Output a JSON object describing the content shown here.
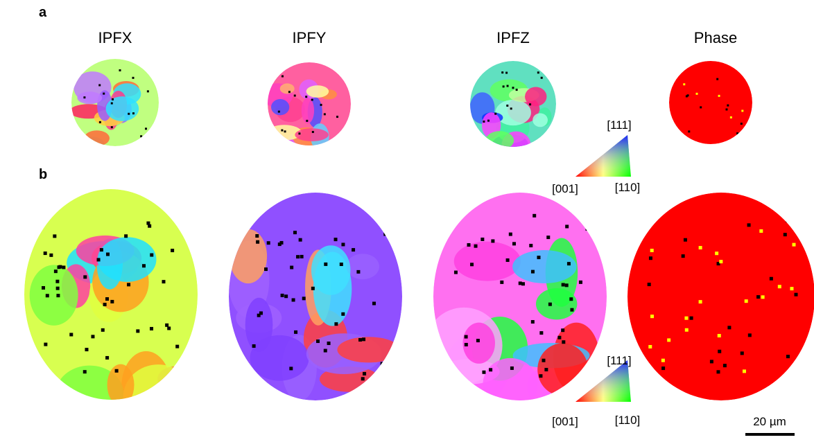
{
  "panels": {
    "a": "a",
    "b": "b"
  },
  "columns": [
    "IPFX",
    "IPFY",
    "IPFZ",
    "Phase"
  ],
  "legend_top": {
    "top": "[111]",
    "left": "[001]",
    "right": "[110]"
  },
  "legend_bottom": {
    "top": "[111]",
    "left": "[001]",
    "right": "[110]"
  },
  "scale_bar": "20 µm"
}
